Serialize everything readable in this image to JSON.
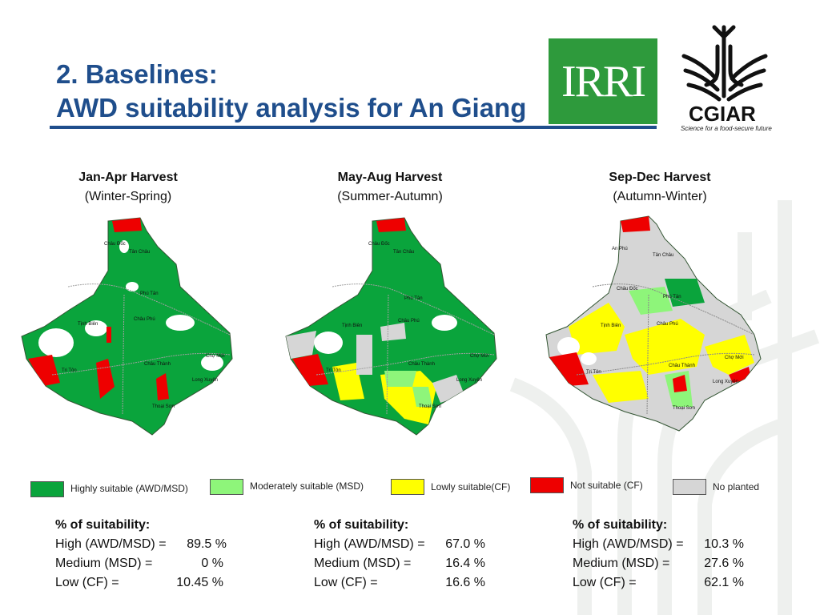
{
  "title": {
    "line1": "2. Baselines:",
    "line2": "AWD suitability analysis for An Giang"
  },
  "logos": {
    "irri": "IRRI",
    "cgiar": "CGIAR",
    "cgiar_tagline": "Science for a food-secure future"
  },
  "seasons": [
    {
      "harvest": "Jan-Apr Harvest",
      "season": "(Winter-Spring)"
    },
    {
      "harvest": "May-Aug Harvest",
      "season": "(Summer-Autumn)"
    },
    {
      "harvest": "Sep-Dec Harvest",
      "season": "(Autumn-Winter)"
    }
  ],
  "map_labels": [
    [
      "Tân Châu",
      "Phú Tân",
      "Châu Đốc",
      "Châu Phú",
      "Tịnh Biên",
      "Tri Tôn",
      "Châu Thành",
      "Long Xuyên",
      "Chợ Mới",
      "Thoại Sơn"
    ],
    [
      "Tân Châu",
      "Phú Tân",
      "Châu Đốc",
      "Châu Phú",
      "Tịnh Biên",
      "Tri Tôn",
      "Châu Thành",
      "Long Xuyên",
      "Chợ Mới",
      "Thoại Sơn"
    ],
    [
      "An Phú",
      "Tân Châu",
      "Châu Đốc",
      "Phú Tân",
      "Châu Phú",
      "Tịnh Biên",
      "Tri Tôn",
      "Châu Thành",
      "Chợ Mới",
      "Long Xuyên",
      "Thoại Sơn"
    ]
  ],
  "legend": [
    {
      "label": "Highly suitable (AWD/MSD)",
      "color": "#0aa43c"
    },
    {
      "label": "Moderately suitable (MSD)",
      "color": "#8ef57a"
    },
    {
      "label": "Lowly suitable(CF)",
      "color": "#ffff00"
    },
    {
      "label": "Not suitable (CF)",
      "color": "#ee0000"
    },
    {
      "label": "No planted",
      "color": "#d6d6d6"
    }
  ],
  "stats": [
    {
      "heading": "% of suitability:",
      "rows": [
        {
          "label": "High (AWD/MSD) =",
          "value": "89.5 %"
        },
        {
          "label": "Medium (MSD) =",
          "value": "0 %"
        },
        {
          "label": "Low (CF) =",
          "value": "10.45 %"
        }
      ]
    },
    {
      "heading": "% of suitability:",
      "rows": [
        {
          "label": "High (AWD/MSD) =",
          "value": "67.0 %"
        },
        {
          "label": "Medium (MSD) =",
          "value": "16.4 %"
        },
        {
          "label": "Low (CF) =",
          "value": "16.6 %"
        }
      ]
    },
    {
      "heading": "% of suitability:",
      "rows": [
        {
          "label": "High (AWD/MSD) =",
          "value": "10.3 %"
        },
        {
          "label": "Medium (MSD) =",
          "value": "27.6 %"
        },
        {
          "label": "Low (CF) =",
          "value": "62.1 %"
        }
      ]
    }
  ]
}
